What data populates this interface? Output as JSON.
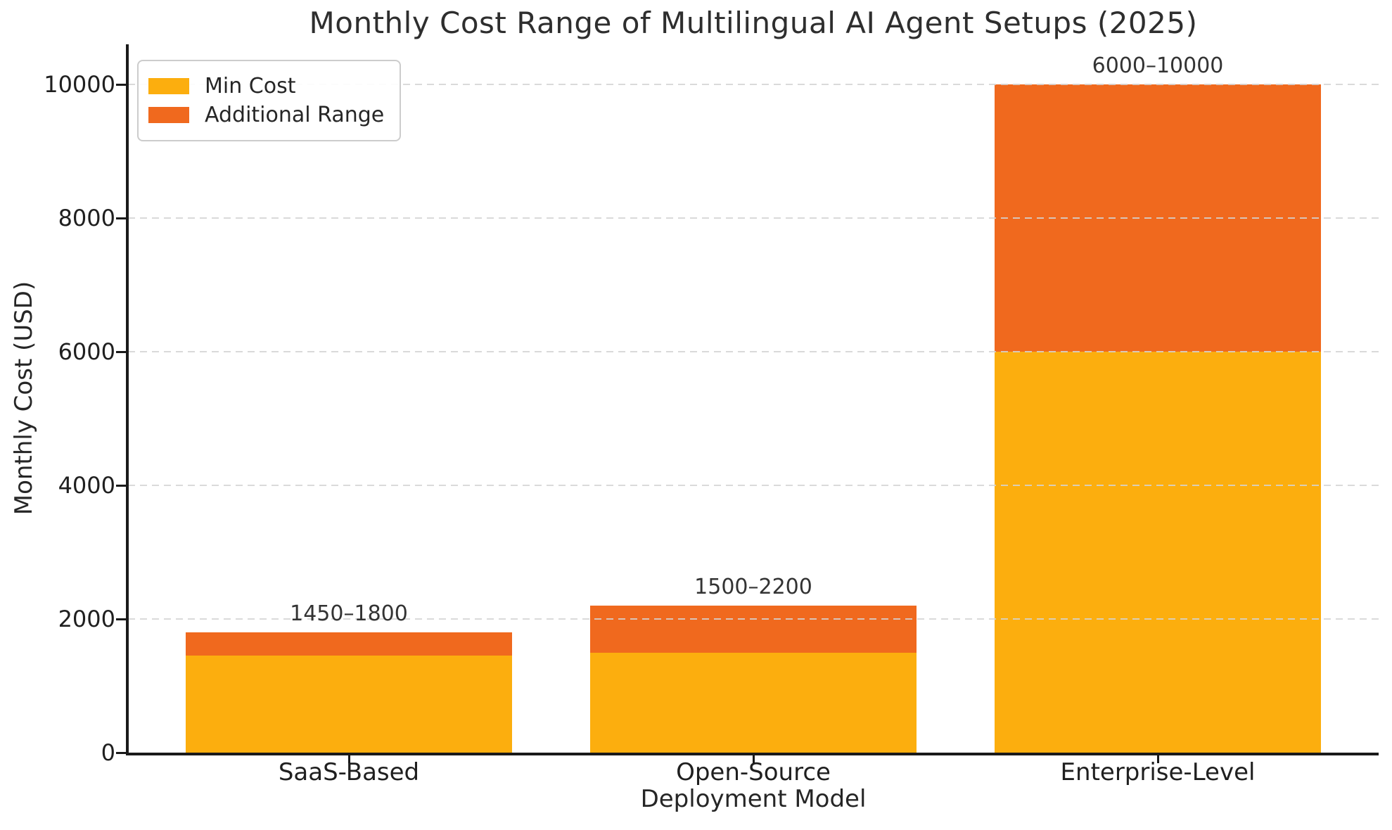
{
  "chart_data": {
    "type": "bar",
    "stacked": true,
    "title": "Monthly Cost Range of Multilingual AI Agent Setups (2025)",
    "xlabel": "Deployment Model",
    "ylabel": "Monthly Cost (USD)",
    "categories": [
      "SaaS-Based",
      "Open-Source",
      "Enterprise-Level"
    ],
    "series": [
      {
        "name": "Min Cost",
        "color": "#FCAE0E",
        "values": [
          1450,
          1500,
          6000
        ]
      },
      {
        "name": "Additional Range",
        "color": "#F0691E",
        "values": [
          350,
          700,
          4000
        ]
      }
    ],
    "ranges": [
      {
        "category": "SaaS-Based",
        "min": 1450,
        "max": 1800
      },
      {
        "category": "Open-Source",
        "min": 1500,
        "max": 2200
      },
      {
        "category": "Enterprise-Level",
        "min": 6000,
        "max": 10000
      }
    ],
    "bar_labels": [
      "1450–1800",
      "1500–2200",
      "6000–10000"
    ],
    "yticks": [
      0,
      2000,
      4000,
      6000,
      8000,
      10000
    ],
    "ylim": [
      0,
      10600
    ],
    "grid": "horizontal-dashed",
    "grid_color": "#d4d4d4",
    "legend_position": "upper-left",
    "colors": {
      "min_cost": "#FCAE0E",
      "additional_range": "#F0691E",
      "spine": "#1a1a1a",
      "text": "#262626"
    }
  }
}
